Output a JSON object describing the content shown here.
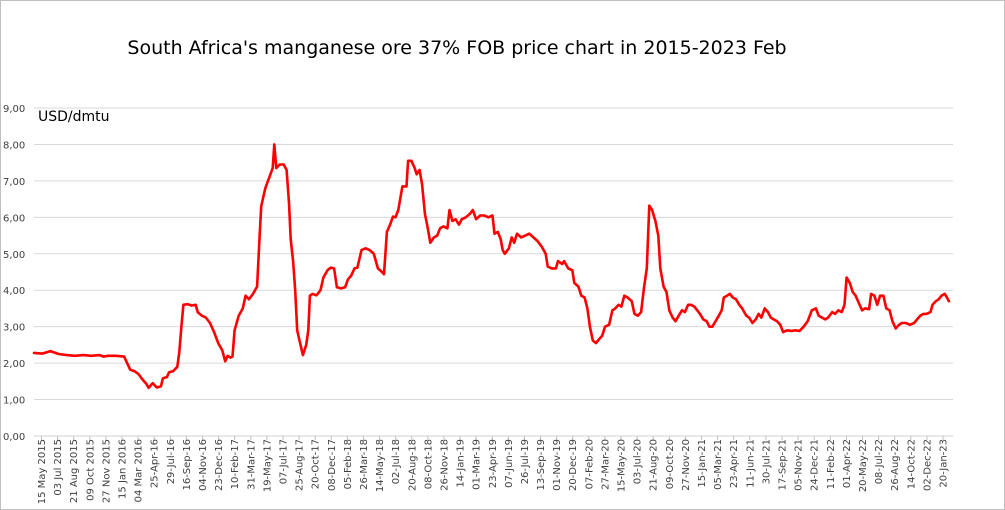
{
  "chart_data": {
    "type": "line",
    "title": "South Africa's manganese ore 37% FOB price chart in 2015-2023 Feb",
    "ylabel": "USD/dmtu",
    "xlabel": "",
    "ylim": [
      0,
      9
    ],
    "y_ticks": [
      "0,00",
      "1,00",
      "2,00",
      "3,00",
      "4,00",
      "5,00",
      "6,00",
      "7,00",
      "8,00",
      "9,00"
    ],
    "grid": "horizontal",
    "legend": "none",
    "line_color": "#ff0000",
    "x_ticks": [
      "15 May 2015",
      "03 Jul 2015",
      "21 Aug 2015",
      "09 Oct 2015",
      "27 Nov 2015",
      "15 Jan 2016",
      "04 Mar 2016",
      "25-Apr-16",
      "29-Jul-16",
      "16-Sep-16",
      "04-Nov-16",
      "23-Dec-16",
      "10-Feb-17",
      "31-Mar-17",
      "19-May-17",
      "07-Jul-17",
      "25-Aug-17",
      "20-Oct-17",
      "08-Dec-17",
      "05-Feb-18",
      "26-Mar-18",
      "14-May-18",
      "02-Jul-18",
      "20-Aug-18",
      "08-Oct-18",
      "26-Nov-18",
      "14-Jan-19",
      "01-Mar-19",
      "23-Apr-19",
      "07-Jun-19",
      "26-Jul-19",
      "13-Sep-19",
      "01-Nov-19",
      "20-Dec-19",
      "07-Feb-20",
      "27-Mar-20",
      "15-May-20",
      "03-Jul-20",
      "21-Aug-20",
      "09-Oct-20",
      "27-Nov-20",
      "15-Jan-21",
      "05-Mar-21",
      "23-Apr-21",
      "11-Jun-21",
      "30-Jul-21",
      "17-Sep-21",
      "05-Nov-21",
      "24-Dec-21",
      "11-Feb-22",
      "01-Apr-22",
      "20-May-22",
      "08-Jul-22",
      "26-Aug-22",
      "14-Oct-22",
      "02-Dec-22",
      "20-Jan-23"
    ],
    "series": [
      {
        "values": [
          [
            0,
            2.28
          ],
          [
            2,
            2.26
          ],
          [
            4,
            2.33
          ],
          [
            6,
            2.25
          ],
          [
            8,
            2.22
          ],
          [
            10,
            2.2
          ],
          [
            12,
            2.22
          ],
          [
            14,
            2.2
          ],
          [
            16,
            2.22
          ],
          [
            17,
            2.18
          ],
          [
            18,
            2.2
          ],
          [
            20,
            2.2
          ],
          [
            22,
            2.18
          ],
          [
            23.5,
            1.82
          ],
          [
            24.5,
            1.78
          ],
          [
            25.5,
            1.7
          ],
          [
            26.5,
            1.55
          ],
          [
            27.5,
            1.42
          ],
          [
            28,
            1.32
          ],
          [
            29,
            1.45
          ],
          [
            30,
            1.33
          ],
          [
            31,
            1.36
          ],
          [
            31.5,
            1.58
          ],
          [
            32.5,
            1.62
          ],
          [
            33,
            1.75
          ],
          [
            34,
            1.78
          ],
          [
            35,
            1.9
          ],
          [
            35.5,
            2.3
          ],
          [
            36,
            3.0
          ],
          [
            36.5,
            3.6
          ],
          [
            37.5,
            3.62
          ],
          [
            38.5,
            3.58
          ],
          [
            39.5,
            3.6
          ],
          [
            40,
            3.4
          ],
          [
            41,
            3.3
          ],
          [
            42,
            3.25
          ],
          [
            43,
            3.1
          ],
          [
            44,
            2.85
          ],
          [
            45,
            2.55
          ],
          [
            46,
            2.35
          ],
          [
            46.7,
            2.05
          ],
          [
            47.3,
            2.2
          ],
          [
            48,
            2.15
          ],
          [
            48.5,
            2.18
          ],
          [
            49,
            2.9
          ],
          [
            50,
            3.3
          ],
          [
            51,
            3.5
          ],
          [
            51.7,
            3.85
          ],
          [
            52.5,
            3.75
          ],
          [
            53.5,
            3.9
          ],
          [
            54.5,
            4.1
          ],
          [
            55,
            5.2
          ],
          [
            55.5,
            6.3
          ],
          [
            56.5,
            6.8
          ],
          [
            57.5,
            7.1
          ],
          [
            58.3,
            7.35
          ],
          [
            58.7,
            8.0
          ],
          [
            59.2,
            7.35
          ],
          [
            60,
            7.45
          ],
          [
            61,
            7.45
          ],
          [
            61.7,
            7.3
          ],
          [
            62.3,
            6.4
          ],
          [
            62.7,
            5.4
          ],
          [
            63.3,
            4.8
          ],
          [
            63.8,
            4.0
          ],
          [
            64.3,
            2.9
          ],
          [
            65,
            2.55
          ],
          [
            65.7,
            2.22
          ],
          [
            66.5,
            2.5
          ],
          [
            67,
            2.9
          ],
          [
            67.4,
            3.85
          ],
          [
            68,
            3.9
          ],
          [
            69,
            3.86
          ],
          [
            70,
            4.0
          ],
          [
            70.7,
            4.35
          ],
          [
            71.7,
            4.55
          ],
          [
            72.5,
            4.62
          ],
          [
            73.3,
            4.6
          ],
          [
            74,
            4.08
          ],
          [
            75,
            4.05
          ],
          [
            76,
            4.08
          ],
          [
            76.7,
            4.3
          ],
          [
            77.5,
            4.4
          ],
          [
            78.3,
            4.6
          ],
          [
            79,
            4.62
          ],
          [
            80,
            5.1
          ],
          [
            81,
            5.15
          ],
          [
            82,
            5.1
          ],
          [
            83,
            5.0
          ],
          [
            84,
            4.6
          ],
          [
            85,
            4.5
          ],
          [
            85.5,
            4.44
          ],
          [
            86.2,
            5.6
          ],
          [
            87,
            5.8
          ],
          [
            87.7,
            6.02
          ],
          [
            88.3,
            6.0
          ],
          [
            89,
            6.2
          ],
          [
            90,
            6.85
          ],
          [
            91,
            6.85
          ],
          [
            91.4,
            7.55
          ],
          [
            92.2,
            7.55
          ],
          [
            93,
            7.35
          ],
          [
            93.5,
            7.18
          ],
          [
            94.2,
            7.3
          ],
          [
            94.8,
            6.9
          ],
          [
            95.5,
            6.1
          ],
          [
            96.2,
            5.7
          ],
          [
            96.8,
            5.3
          ],
          [
            97.7,
            5.45
          ],
          [
            98.5,
            5.5
          ],
          [
            99.2,
            5.7
          ],
          [
            100,
            5.75
          ],
          [
            101,
            5.7
          ],
          [
            101.5,
            6.2
          ],
          [
            102.2,
            5.9
          ],
          [
            103,
            5.95
          ],
          [
            103.8,
            5.8
          ],
          [
            104.5,
            5.95
          ],
          [
            105.5,
            6.0
          ],
          [
            106.5,
            6.1
          ],
          [
            107.2,
            6.2
          ],
          [
            108,
            5.95
          ],
          [
            109,
            6.05
          ],
          [
            110,
            6.05
          ],
          [
            111,
            6.0
          ],
          [
            112,
            6.05
          ],
          [
            112.5,
            5.55
          ],
          [
            113.3,
            5.6
          ],
          [
            114,
            5.4
          ],
          [
            114.5,
            5.1
          ],
          [
            115,
            5.0
          ],
          [
            116,
            5.15
          ],
          [
            116.7,
            5.45
          ],
          [
            117.3,
            5.3
          ],
          [
            118,
            5.55
          ],
          [
            119,
            5.45
          ],
          [
            120,
            5.5
          ],
          [
            121,
            5.55
          ],
          [
            122,
            5.45
          ],
          [
            123,
            5.35
          ],
          [
            124,
            5.2
          ],
          [
            125,
            5.0
          ],
          [
            125.5,
            4.65
          ],
          [
            126.5,
            4.6
          ],
          [
            127.5,
            4.6
          ],
          [
            128,
            4.8
          ],
          [
            129,
            4.72
          ],
          [
            129.5,
            4.8
          ],
          [
            130.5,
            4.6
          ],
          [
            131.5,
            4.55
          ],
          [
            132,
            4.2
          ],
          [
            133,
            4.1
          ],
          [
            133.7,
            3.85
          ],
          [
            134.5,
            3.8
          ],
          [
            135.2,
            3.5
          ],
          [
            135.8,
            3.0
          ],
          [
            136.5,
            2.62
          ],
          [
            137.3,
            2.55
          ],
          [
            138,
            2.65
          ],
          [
            138.8,
            2.75
          ],
          [
            139.5,
            3.0
          ],
          [
            140.5,
            3.05
          ],
          [
            141.3,
            3.45
          ],
          [
            142,
            3.5
          ],
          [
            142.8,
            3.6
          ],
          [
            143.5,
            3.55
          ],
          [
            144.2,
            3.85
          ],
          [
            145,
            3.8
          ],
          [
            146,
            3.7
          ],
          [
            146.7,
            3.35
          ],
          [
            147.5,
            3.3
          ],
          [
            148.3,
            3.4
          ],
          [
            149,
            4.05
          ],
          [
            149.7,
            4.6
          ],
          [
            150.3,
            6.32
          ],
          [
            151,
            6.2
          ],
          [
            151.8,
            5.9
          ],
          [
            152.5,
            5.5
          ],
          [
            153,
            4.6
          ],
          [
            153.8,
            4.1
          ],
          [
            154.5,
            3.95
          ],
          [
            155.2,
            3.45
          ],
          [
            156,
            3.25
          ],
          [
            156.7,
            3.15
          ],
          [
            157.5,
            3.3
          ],
          [
            158.3,
            3.45
          ],
          [
            159,
            3.4
          ],
          [
            159.8,
            3.6
          ],
          [
            160.5,
            3.6
          ],
          [
            161.3,
            3.55
          ],
          [
            162,
            3.45
          ],
          [
            162.7,
            3.35
          ],
          [
            163.5,
            3.2
          ],
          [
            164.3,
            3.15
          ],
          [
            165,
            3.0
          ],
          [
            165.7,
            3.0
          ],
          [
            166.5,
            3.15
          ],
          [
            167.3,
            3.3
          ],
          [
            168,
            3.45
          ],
          [
            168.5,
            3.8
          ],
          [
            169.3,
            3.85
          ],
          [
            170,
            3.9
          ],
          [
            170.7,
            3.8
          ],
          [
            171.5,
            3.75
          ],
          [
            172.3,
            3.6
          ],
          [
            173,
            3.5
          ],
          [
            174,
            3.3
          ],
          [
            174.7,
            3.25
          ],
          [
            175.5,
            3.1
          ],
          [
            176.3,
            3.2
          ],
          [
            177,
            3.35
          ],
          [
            177.7,
            3.25
          ],
          [
            178.5,
            3.5
          ],
          [
            179.3,
            3.4
          ],
          [
            180,
            3.25
          ],
          [
            180.7,
            3.2
          ],
          [
            181.5,
            3.15
          ],
          [
            182.3,
            3.05
          ],
          [
            183,
            2.85
          ],
          [
            184,
            2.9
          ],
          [
            185,
            2.88
          ],
          [
            186,
            2.9
          ],
          [
            187,
            2.88
          ],
          [
            188,
            3.0
          ],
          [
            189,
            3.15
          ],
          [
            190,
            3.45
          ],
          [
            191,
            3.5
          ],
          [
            191.7,
            3.3
          ],
          [
            192.5,
            3.25
          ],
          [
            193.3,
            3.2
          ],
          [
            194,
            3.25
          ],
          [
            195,
            3.4
          ],
          [
            195.7,
            3.35
          ],
          [
            196.5,
            3.45
          ],
          [
            197.3,
            3.4
          ],
          [
            198,
            3.6
          ],
          [
            198.5,
            4.35
          ],
          [
            199.3,
            4.2
          ],
          [
            200,
            3.95
          ],
          [
            200.7,
            3.85
          ],
          [
            201.5,
            3.65
          ],
          [
            202.3,
            3.45
          ],
          [
            203,
            3.5
          ],
          [
            204,
            3.48
          ],
          [
            204.5,
            3.9
          ],
          [
            205.3,
            3.85
          ],
          [
            206,
            3.6
          ],
          [
            206.7,
            3.85
          ],
          [
            207.5,
            3.85
          ],
          [
            208.2,
            3.5
          ],
          [
            209,
            3.45
          ],
          [
            209.7,
            3.15
          ],
          [
            210.5,
            2.95
          ],
          [
            211.3,
            3.05
          ],
          [
            212,
            3.1
          ],
          [
            213,
            3.1
          ],
          [
            214,
            3.05
          ],
          [
            215,
            3.1
          ],
          [
            215.7,
            3.2
          ],
          [
            216.5,
            3.3
          ],
          [
            217.3,
            3.35
          ],
          [
            218,
            3.35
          ],
          [
            219,
            3.4
          ],
          [
            219.5,
            3.6
          ],
          [
            220.3,
            3.7
          ],
          [
            221,
            3.75
          ],
          [
            221.7,
            3.85
          ],
          [
            222.5,
            3.9
          ],
          [
            223,
            3.8
          ],
          [
            223.5,
            3.7
          ]
        ]
      }
    ]
  }
}
